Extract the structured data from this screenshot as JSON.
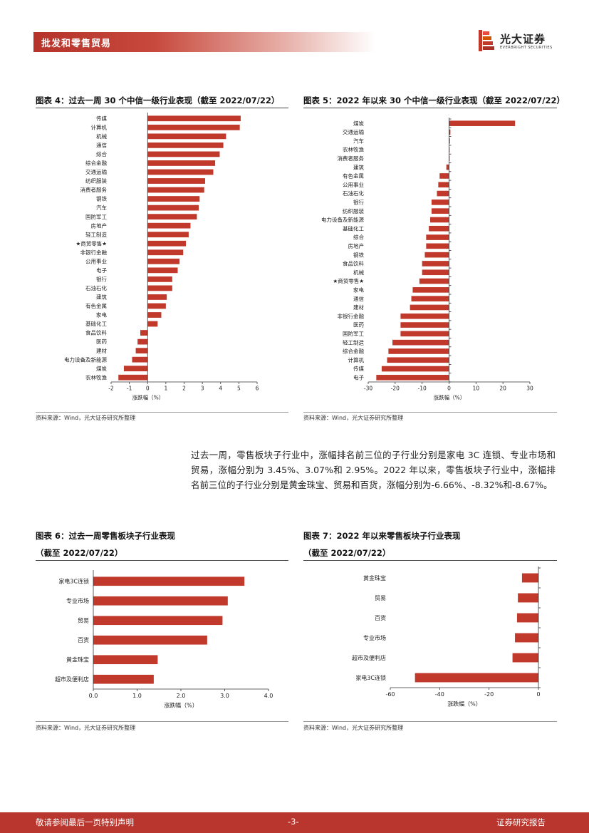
{
  "header": {
    "title": "批发和零售贸易"
  },
  "logo": {
    "name_cn": "光大证券",
    "name_en": "EVERBRIGHT SECURITIES"
  },
  "fig4": {
    "title": "图表 4：过去一周 30 个中信一级行业表现（截至 2022/07/22）",
    "source": "资料来源：Wind，光大证券研究所整理"
  },
  "fig5": {
    "title": "图表 5：2022 年以来 30 个中信一级行业表现（截至 2022/07/22）",
    "source": "资料来源：Wind，光大证券研究所整理"
  },
  "paragraph": "过去一周，零售板块子行业中，涨幅排名前三位的子行业分别是家电 3C 连锁、专业市场和贸易，涨幅分别为 3.45%、3.07%和 2.95%。2022 年以来，零售板块子行业中，涨幅排名前三位的子行业分别是黄金珠宝、贸易和百货，涨幅分别为-6.66%、-8.32%和-8.67%。",
  "fig6": {
    "title_line1": "图表 6：过去一周零售板块子行业表现",
    "title_line2": "（截至 2022/07/22）",
    "source": "资料来源：Wind，光大证券研究所整理"
  },
  "fig7": {
    "title_line1": "图表 7：2022 年以来零售板块子行业表现",
    "title_line2": "（截至 2022/07/22）",
    "source": "资料来源：Wind，光大证券研究所整理"
  },
  "footer": {
    "left": "敬请参阅最后一页特别声明",
    "center": "-3-",
    "right": "证券研究报告"
  },
  "colors": {
    "bar": "#c0392b",
    "accent": "#b8362d"
  },
  "chart_data": [
    {
      "id": "fig4",
      "type": "bar",
      "orientation": "horizontal",
      "xlabel": "涨跌幅（%）",
      "xlim": [
        -2,
        6
      ],
      "xticks": [
        -2,
        -1,
        0,
        1,
        2,
        3,
        4,
        5,
        6
      ],
      "categories": [
        "传媒",
        "计算机",
        "机械",
        "通信",
        "综合",
        "综合金融",
        "交通运输",
        "纺织服装",
        "消费者服务",
        "钢铁",
        "汽车",
        "国防军工",
        "房地产",
        "轻工制造",
        "★商贸零售★",
        "非银行金融",
        "公用事业",
        "电子",
        "银行",
        "石油石化",
        "建筑",
        "有色金属",
        "家电",
        "基础化工",
        "食品饮料",
        "医药",
        "建材",
        "电力设备及新能源",
        "煤炭",
        "农林牧渔"
      ],
      "values": [
        5.1,
        5.05,
        4.3,
        4.15,
        3.95,
        3.7,
        3.6,
        3.15,
        3.1,
        2.85,
        2.8,
        2.7,
        2.35,
        2.25,
        2.1,
        1.95,
        1.75,
        1.65,
        1.35,
        1.35,
        1.05,
        1.0,
        0.75,
        0.55,
        -0.4,
        -0.55,
        -0.65,
        -0.85,
        -1.3,
        -1.6
      ]
    },
    {
      "id": "fig5",
      "type": "bar",
      "orientation": "horizontal",
      "xlabel": "涨跌幅（%）",
      "xlim": [
        -30,
        30
      ],
      "xticks": [
        -30,
        -20,
        -10,
        0,
        10,
        20,
        30
      ],
      "categories": [
        "煤炭",
        "交通运输",
        "汽车",
        "农林牧渔",
        "消费者服务",
        "建筑",
        "有色金属",
        "公用事业",
        "石油石化",
        "银行",
        "纺织服装",
        "电力设备及新能源",
        "基础化工",
        "综合",
        "房地产",
        "钢铁",
        "食品饮料",
        "机械",
        "★商贸零售★",
        "家电",
        "通信",
        "建材",
        "非银行金融",
        "医药",
        "国防军工",
        "轻工制造",
        "综合金融",
        "计算机",
        "传媒",
        "电子"
      ],
      "values": [
        24.5,
        0.5,
        0.3,
        0.2,
        0.2,
        -1.0,
        -3.5,
        -4.0,
        -4.5,
        -6.5,
        -6.5,
        -7.0,
        -7.5,
        -8.5,
        -8.5,
        -9.0,
        -10.0,
        -10.0,
        -11.0,
        -13.5,
        -14.0,
        -14.5,
        -18.0,
        -18.0,
        -18.0,
        -21.0,
        -22.5,
        -23.0,
        -25.0,
        -27.0
      ]
    },
    {
      "id": "fig6",
      "type": "bar",
      "orientation": "horizontal",
      "xlabel": "涨跌幅（%）",
      "xlim": [
        0,
        4
      ],
      "xticks": [
        "0.0",
        "1.0",
        "2.0",
        "3.0",
        "4.0"
      ],
      "categories": [
        "家电3C连锁",
        "专业市场",
        "贸易",
        "百货",
        "黄金珠宝",
        "超市及便利店"
      ],
      "values": [
        3.45,
        3.07,
        2.95,
        2.6,
        1.47,
        1.38
      ]
    },
    {
      "id": "fig7",
      "type": "bar",
      "orientation": "horizontal",
      "xlabel": "涨跌幅（%）",
      "xlim": [
        -60,
        0
      ],
      "xticks": [
        -60,
        -40,
        -20,
        0
      ],
      "categories": [
        "黄金珠宝",
        "贸易",
        "百货",
        "专业市场",
        "超市及便利店",
        "家电3C连锁"
      ],
      "values": [
        -6.66,
        -8.32,
        -8.67,
        -9.5,
        -10.5,
        -50.0
      ]
    }
  ]
}
